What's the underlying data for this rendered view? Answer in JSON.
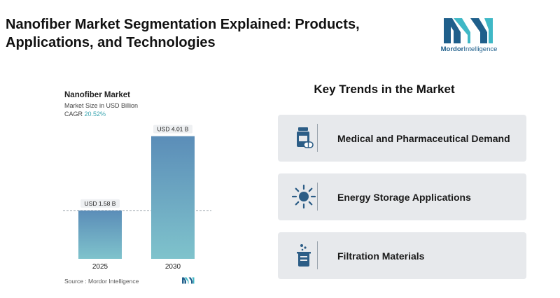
{
  "header": {
    "title": "Nanofiber Market Segmentation Explained: Products, Applications, and Technologies"
  },
  "logo": {
    "brand_bold": "Mordor",
    "brand_rest": "Intelligence",
    "colors": {
      "teal": "#3fb8c6",
      "blue": "#1f5f8b"
    }
  },
  "chart_data": {
    "type": "bar",
    "title": "Nanofiber Market",
    "subtitle": "Market Size in USD Billion",
    "cagr_label": "CAGR",
    "cagr_value": "20.52%",
    "categories": [
      "2025",
      "2030"
    ],
    "values": [
      1.58,
      4.01
    ],
    "data_labels": [
      "USD 1.58 B",
      "USD 4.01 B"
    ],
    "ylim": [
      0,
      4.3
    ],
    "grid": false,
    "reference_line_at": 1.58,
    "colors": {
      "bar_top": "#5b8db8",
      "bar_bottom": "#7fc3cc"
    },
    "source": "Source :  Mordor Intelligence"
  },
  "trends": {
    "title": "Key Trends in the Market",
    "items": [
      {
        "label": "Medical and Pharmaceutical Demand",
        "icon": "medicine-bottle-icon"
      },
      {
        "label": "Energy Storage Applications",
        "icon": "sun-energy-icon"
      },
      {
        "label": "Filtration Materials",
        "icon": "beaker-icon"
      }
    ],
    "colors": {
      "card": "#e7e9ec",
      "icon": "#2c5d86"
    }
  }
}
